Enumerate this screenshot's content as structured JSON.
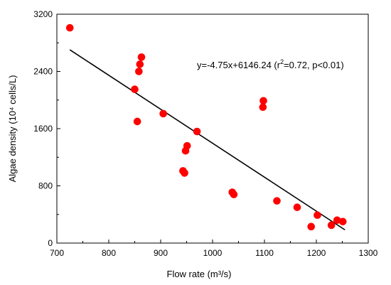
{
  "chart_data": {
    "type": "scatter",
    "xlabel": "Flow rate (m³/s)",
    "ylabel": "Algae density (10⁴ cells/L)",
    "xlim": [
      700,
      1300
    ],
    "ylim": [
      0,
      3200
    ],
    "x_ticks": [
      700,
      800,
      900,
      1000,
      1100,
      1200,
      1300
    ],
    "y_ticks": [
      0,
      800,
      1600,
      2400,
      3200
    ],
    "grid": false,
    "series": [
      {
        "color": "#ff0000",
        "points": [
          [
            725,
            3010
          ],
          [
            850,
            2150
          ],
          [
            855,
            1700
          ],
          [
            858,
            2400
          ],
          [
            860,
            2500
          ],
          [
            863,
            2600
          ],
          [
            905,
            1810
          ],
          [
            943,
            1010
          ],
          [
            946,
            980
          ],
          [
            948,
            1290
          ],
          [
            951,
            1360
          ],
          [
            970,
            1560
          ],
          [
            1038,
            710
          ],
          [
            1041,
            680
          ],
          [
            1097,
            1900
          ],
          [
            1098,
            1990
          ],
          [
            1124,
            590
          ],
          [
            1163,
            500
          ],
          [
            1190,
            230
          ],
          [
            1202,
            390
          ],
          [
            1229,
            250
          ],
          [
            1240,
            320
          ],
          [
            1251,
            300
          ]
        ]
      }
    ],
    "fit_line": {
      "slope": -4.75,
      "intercept": 6146.24,
      "x_range": [
        725,
        1255
      ],
      "color": "#000000"
    },
    "annotation": {
      "equation": "y=-4.75x+6146.24 (r",
      "superscript": "2",
      "stats": "=0.72, p<0.01)"
    }
  }
}
